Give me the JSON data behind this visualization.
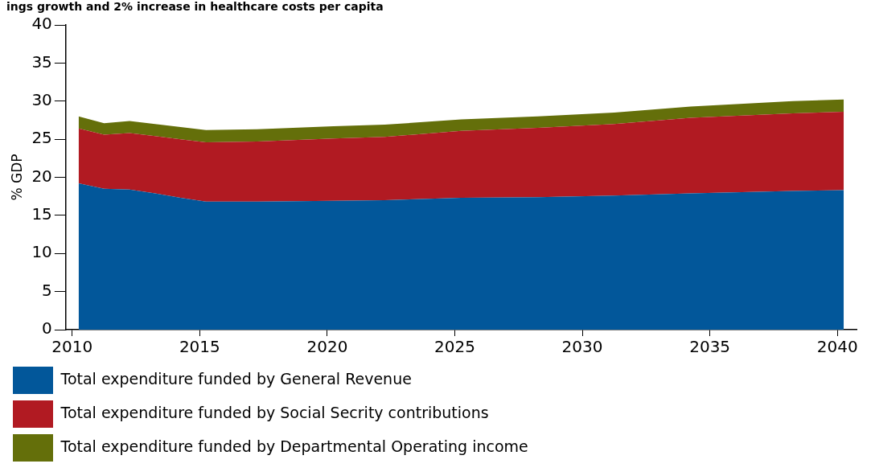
{
  "chart_data": {
    "type": "area",
    "title": "ings growth and 2% increase in healthcare costs per capita",
    "ylabel": "% GDP",
    "stacked": true,
    "x": [
      2010.25,
      2011.25,
      2012.25,
      2013.25,
      2014.25,
      2015.25,
      2017.25,
      2020.25,
      2022.25,
      2025.25,
      2028.25,
      2031.25,
      2034.25,
      2038.25,
      2040.25
    ],
    "series": [
      {
        "name": "Total expenditure funded by General Revenue",
        "color": "#02579a",
        "values": [
          19.2,
          18.5,
          18.4,
          17.9,
          17.3,
          16.8,
          16.8,
          16.9,
          17.0,
          17.3,
          17.4,
          17.6,
          17.9,
          18.2,
          18.3
        ]
      },
      {
        "name": "Total expenditure funded by Social Secrity contributions",
        "color": "#b11a22",
        "values": [
          7.2,
          7.1,
          7.4,
          7.5,
          7.7,
          7.8,
          7.9,
          8.2,
          8.3,
          8.8,
          9.1,
          9.4,
          9.9,
          10.2,
          10.3
        ]
      },
      {
        "name": "Total expenditure funded by Departmental Operating income",
        "color": "#646f0a",
        "values": [
          1.6,
          1.5,
          1.6,
          1.6,
          1.6,
          1.6,
          1.6,
          1.6,
          1.6,
          1.5,
          1.5,
          1.5,
          1.5,
          1.6,
          1.6
        ]
      }
    ],
    "xlim": [
      2009.75,
      2040.75
    ],
    "xticks": [
      2010,
      2015,
      2020,
      2025,
      2030,
      2035,
      2040
    ],
    "ylim": [
      0,
      40
    ],
    "yticks": [
      0,
      5,
      10,
      15,
      20,
      25,
      30,
      35,
      40
    ],
    "grid": false,
    "legend": "bottom"
  }
}
